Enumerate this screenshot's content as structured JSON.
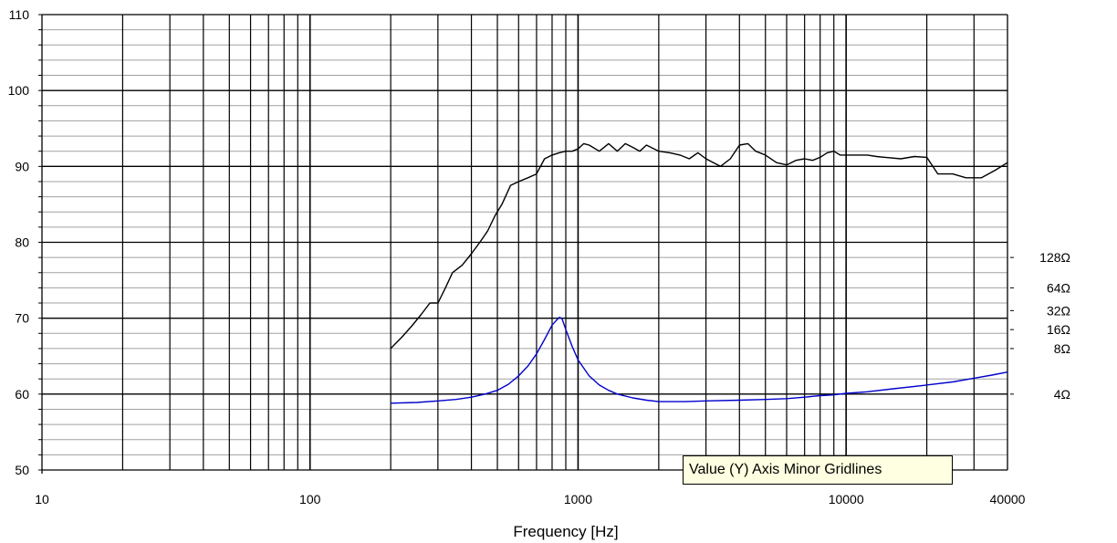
{
  "chart_data": {
    "type": "line",
    "xlabel": "Frequency [Hz]",
    "ylabel": "",
    "x_scale": "log",
    "xlim": [
      10,
      40000
    ],
    "ylim": [
      50,
      110
    ],
    "grid": true,
    "y_ticks": [
      "50",
      "60",
      "70",
      "80",
      "90",
      "100",
      "110"
    ],
    "x_ticks": [
      {
        "value": 10,
        "label": "10"
      },
      {
        "value": 100,
        "label": "100"
      },
      {
        "value": 1000,
        "label": "1000"
      },
      {
        "value": 10000,
        "label": "10000"
      },
      {
        "value": 40000,
        "label": "40000"
      }
    ],
    "impedance_scale": [
      {
        "label": "128Ω",
        "value": 78
      },
      {
        "label": "64Ω",
        "value": 74
      },
      {
        "label": "32Ω",
        "value": 71
      },
      {
        "label": "16Ω",
        "value": 68.5
      },
      {
        "label": "8Ω",
        "value": 66
      },
      {
        "label": "4Ω",
        "value": 60
      }
    ],
    "series": [
      {
        "color": "#000000",
        "x": [
          200,
          220,
          240,
          260,
          280,
          300,
          320,
          340,
          370,
          400,
          430,
          460,
          490,
          520,
          560,
          600,
          650,
          700,
          750,
          800,
          850,
          900,
          950,
          1000,
          1050,
          1100,
          1200,
          1300,
          1400,
          1500,
          1600,
          1700,
          1800,
          2000,
          2200,
          2400,
          2600,
          2800,
          3000,
          3200,
          3400,
          3700,
          4000,
          4300,
          4600,
          5000,
          5500,
          6000,
          6500,
          7000,
          7500,
          8000,
          8500,
          9000,
          9500,
          10000,
          11000,
          12000,
          13000,
          14000,
          16000,
          18000,
          20000,
          22000,
          25000,
          28000,
          32000,
          36000,
          40000
        ],
        "y": [
          66,
          67.5,
          69,
          70.5,
          72,
          72,
          74,
          76,
          77,
          78.5,
          80,
          81.5,
          83.5,
          85,
          87.5,
          88,
          88.5,
          89,
          91,
          91.5,
          91.8,
          92,
          92,
          92.3,
          93,
          92.8,
          92,
          93,
          92,
          93,
          92.5,
          92,
          92.8,
          92,
          91.8,
          91.5,
          91,
          91.8,
          91,
          90.5,
          90,
          91,
          92.8,
          93,
          92,
          91.5,
          90.5,
          90.2,
          90.8,
          91,
          90.8,
          91.2,
          91.8,
          92,
          91.5,
          91.5,
          91.5,
          91.5,
          91.3,
          91.2,
          91,
          91.3,
          91.2,
          89,
          89,
          88.5,
          88.5,
          89.5,
          90.5
        ]
      },
      {
        "color": "#0000cc",
        "x": [
          200,
          250,
          300,
          350,
          400,
          450,
          500,
          550,
          600,
          650,
          700,
          750,
          800,
          850,
          870,
          900,
          950,
          1000,
          1100,
          1200,
          1300,
          1400,
          1600,
          1800,
          2000,
          2500,
          3000,
          4000,
          5000,
          6000,
          7000,
          8000,
          9000,
          10000,
          12000,
          15000,
          20000,
          25000,
          30000,
          35000,
          40000
        ],
        "y": [
          58.8,
          58.9,
          59.1,
          59.3,
          59.6,
          60,
          60.5,
          61.3,
          62.4,
          63.7,
          65.3,
          67.2,
          69.1,
          70.1,
          70,
          68.5,
          66.3,
          64.5,
          62.4,
          61.2,
          60.5,
          60,
          59.5,
          59.2,
          59,
          59,
          59.1,
          59.2,
          59.3,
          59.4,
          59.6,
          59.8,
          59.9,
          60.1,
          60.3,
          60.7,
          61.2,
          61.6,
          62.1,
          62.5,
          62.9
        ]
      }
    ]
  },
  "tooltip": {
    "text": "Value (Y) Axis Minor Gridlines"
  }
}
